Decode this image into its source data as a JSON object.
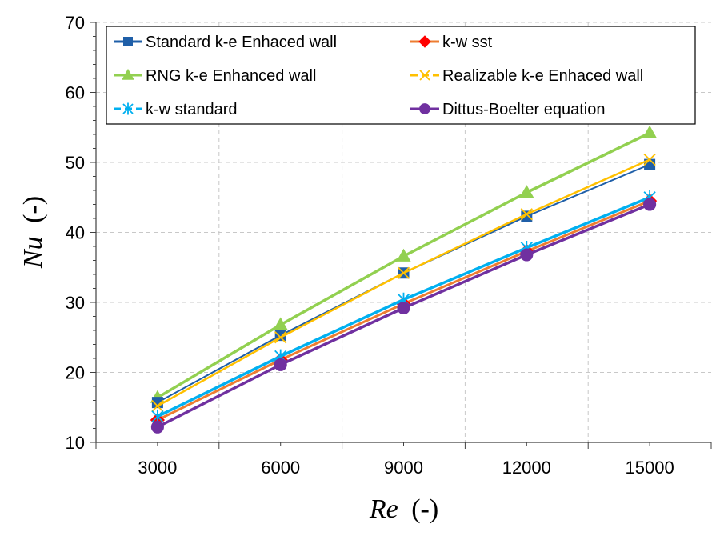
{
  "chart_data": {
    "type": "line",
    "xlabel_symbol": "Re",
    "xlabel_unit": "(-)",
    "ylabel_symbol": "Nu",
    "ylabel_unit": "(-)",
    "xlim": [
      1500,
      16500
    ],
    "ylim": [
      10,
      70
    ],
    "x_ticks": [
      3000,
      6000,
      9000,
      12000,
      15000
    ],
    "y_ticks": [
      10,
      20,
      30,
      40,
      50,
      60,
      70
    ],
    "grid": true,
    "legend_position": "top",
    "x": [
      3000,
      6000,
      9000,
      12000,
      15000
    ],
    "series": [
      {
        "name": "Standard k-e Enhaced wall",
        "color": "#1f5fa8",
        "marker": "square",
        "values": [
          15.7,
          25.3,
          34.2,
          42.3,
          49.7
        ]
      },
      {
        "name": "k-w sst",
        "color": "#ed7d31",
        "marker": "diamond",
        "marker_color": "#ff0000",
        "values": [
          13.2,
          21.8,
          29.8,
          37.3,
          44.5
        ]
      },
      {
        "name": "RNG k-e Enhanced wall",
        "color": "#92d050",
        "marker": "triangle",
        "values": [
          16.4,
          26.8,
          36.6,
          45.7,
          54.2
        ]
      },
      {
        "name": "Realizable k-e Enhaced wall",
        "color": "#ffc000",
        "marker": "x",
        "values": [
          15.2,
          25.0,
          34.2,
          42.6,
          50.4
        ]
      },
      {
        "name": "k-w standard",
        "color": "#00b0f0",
        "marker": "asterisk",
        "values": [
          13.7,
          22.3,
          30.4,
          37.8,
          45.0
        ]
      },
      {
        "name": "Dittus-Boelter equation",
        "color": "#7030a0",
        "marker": "circle",
        "values": [
          12.2,
          21.1,
          29.2,
          36.8,
          44.0
        ]
      }
    ]
  }
}
